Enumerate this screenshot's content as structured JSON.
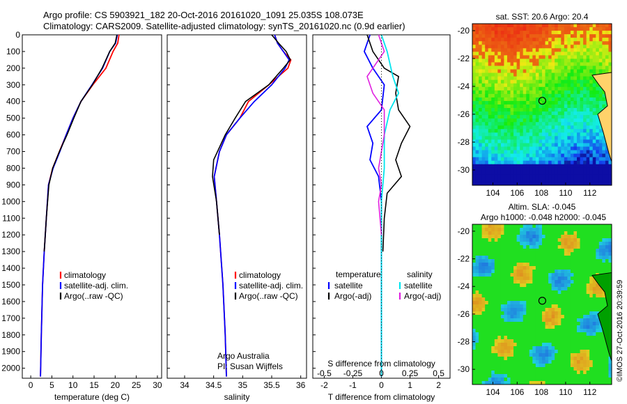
{
  "header": {
    "line1": "Argo profile: CS 5903921_182 20-Oct-2016 20161020_1091 25.035S 108.073E",
    "line2": "Climatology: CARS2009. Satellite-adjusted climatology: synTS_20161020.nc (0.9d earlier)"
  },
  "colors": {
    "climatology": "#ff0000",
    "satellite": "#0000ff",
    "argo": "#000000",
    "sal_satellite": "#00e5ee",
    "sal_argo": "#e020e0"
  },
  "chart_data": [
    {
      "type": "line",
      "name": "temperature",
      "xlabel": "temperature (deg C)",
      "ylabel": "",
      "xlim": [
        -2,
        31
      ],
      "ylim": [
        2060,
        0
      ],
      "xticks": [
        "0",
        "5",
        "10",
        "15",
        "20",
        "25",
        "30"
      ],
      "yticks": [
        "0",
        "100",
        "200",
        "300",
        "400",
        "500",
        "600",
        "700",
        "800",
        "900",
        "1000",
        "1100",
        "1200",
        "1300",
        "1400",
        "1500",
        "1600",
        "1700",
        "1800",
        "1900",
        "2000"
      ],
      "legend": [
        "climatology",
        "satellite-adj. clim.",
        "Argo(..raw -QC)"
      ],
      "series": [
        {
          "name": "climatology",
          "x": [
            20.9,
            20.6,
            19.5,
            17.8,
            14.7,
            11.9,
            10.0,
            8.4,
            6.8,
            5.2,
            4.2,
            3.7,
            3.2,
            2.8,
            2.5,
            2.3
          ],
          "y": [
            0,
            50,
            100,
            200,
            300,
            400,
            500,
            600,
            700,
            800,
            900,
            1100,
            1300,
            1500,
            1800,
            2050
          ]
        },
        {
          "name": "satellite-adj. clim.",
          "x": [
            20.5,
            20.1,
            18.7,
            17.0,
            14.5,
            11.9,
            10.0,
            8.4,
            6.9,
            5.3,
            4.2,
            3.7,
            3.2,
            2.8,
            2.5,
            2.3
          ],
          "y": [
            0,
            50,
            100,
            200,
            300,
            400,
            500,
            600,
            700,
            800,
            900,
            1100,
            1300,
            1500,
            1800,
            2050
          ]
        },
        {
          "name": "Argo(..raw -QC)",
          "x": [
            20.4,
            20.0,
            18.7,
            16.9,
            14.6,
            11.9,
            10.2,
            8.6,
            6.8,
            5.2,
            4.3,
            3.7,
            3.2
          ],
          "y": [
            0,
            50,
            100,
            200,
            300,
            400,
            500,
            600,
            700,
            800,
            900,
            1100,
            1300
          ]
        }
      ]
    },
    {
      "type": "line",
      "name": "salinity",
      "xlabel": "salinity",
      "xlim": [
        33.7,
        36.1
      ],
      "ylim": [
        2060,
        0
      ],
      "xticks": [
        "34",
        "34.5",
        "35",
        "35.5",
        "36"
      ],
      "legend": [
        "climatology",
        "satellite-adj. clim.",
        "Argo(..raw -QC)"
      ],
      "annotation": [
        "Argo Australia",
        "PI: Susan Wijffels"
      ],
      "series": [
        {
          "name": "climatology",
          "x": [
            35.55,
            35.6,
            35.7,
            35.83,
            35.78,
            35.45,
            35.1,
            34.95,
            34.72,
            34.6,
            34.51,
            34.55,
            34.6,
            34.66,
            34.7,
            34.72
          ],
          "y": [
            0,
            50,
            100,
            150,
            200,
            300,
            400,
            500,
            600,
            700,
            850,
            1000,
            1200,
            1500,
            1800,
            2050
          ]
        },
        {
          "name": "satellite-adj. clim.",
          "x": [
            35.55,
            35.6,
            35.7,
            35.8,
            35.73,
            35.5,
            35.2,
            34.95,
            34.72,
            34.6,
            34.51,
            34.55,
            34.6,
            34.66,
            34.7,
            34.72
          ],
          "y": [
            0,
            50,
            100,
            150,
            200,
            300,
            400,
            500,
            600,
            700,
            850,
            1000,
            1200,
            1500,
            1800,
            2050
          ]
        },
        {
          "name": "Argo(..raw -QC)",
          "x": [
            35.5,
            35.62,
            35.75,
            35.82,
            35.7,
            35.45,
            35.05,
            34.87,
            34.7,
            34.5,
            34.48,
            34.55,
            34.6
          ],
          "y": [
            0,
            50,
            100,
            150,
            200,
            300,
            400,
            500,
            600,
            750,
            850,
            1000,
            1200
          ]
        }
      ]
    },
    {
      "type": "line",
      "name": "differences",
      "xlabel": "T difference from climatology",
      "title_inside": "S difference from climatology",
      "xlim": [
        -2.4,
        2.4
      ],
      "ylim": [
        2060,
        0
      ],
      "xticks": [
        "-2",
        "-1",
        "0",
        "1",
        "2"
      ],
      "top_ticks": [
        "-0.5",
        "-0.25",
        "0",
        "0.25",
        "0.5"
      ],
      "legend_t": {
        "title": "temperature",
        "items": [
          "satellite",
          "Argo(-adj)"
        ]
      },
      "legend_s": {
        "title": "salinity",
        "items": [
          "satellite",
          "Argo(-adj)"
        ]
      },
      "series": [
        {
          "name": "T satellite",
          "x": [
            -0.4,
            -0.6,
            -0.3,
            0.1,
            0.0,
            -0.5,
            -0.3,
            -0.4,
            -0.1,
            0.0,
            0.0,
            0.0
          ],
          "y": [
            0,
            100,
            200,
            300,
            450,
            550,
            650,
            750,
            850,
            1000,
            1500,
            2050
          ]
        },
        {
          "name": "T Argo(-adj)",
          "x": [
            -0.5,
            -0.3,
            0.1,
            0.6,
            0.5,
            0.6,
            1.0,
            0.7,
            0.5,
            0.7,
            0.2,
            0.1,
            0.05
          ],
          "y": [
            0,
            100,
            200,
            250,
            350,
            450,
            550,
            650,
            750,
            850,
            950,
            1100,
            1300
          ]
        },
        {
          "name": "S satellite",
          "x": [
            0.0,
            0.2,
            0.4,
            0.6,
            0.3,
            0.1,
            0.1,
            0.0,
            0.0,
            0.0
          ],
          "y": [
            0,
            100,
            250,
            350,
            450,
            600,
            800,
            1000,
            1500,
            2050
          ]
        },
        {
          "name": "S Argo(-adj)",
          "x": [
            -0.1,
            0.1,
            -0.5,
            -0.3,
            0.1,
            0.1,
            -0.1,
            0.0,
            -0.1,
            0.0
          ],
          "y": [
            0,
            100,
            250,
            350,
            450,
            600,
            800,
            900,
            1000,
            1200
          ]
        }
      ]
    },
    {
      "type": "heatmap",
      "name": "sst-map",
      "title": "sat. SST: 20.6 Argo: 20.4",
      "xticks": [
        "104",
        "106",
        "108",
        "110",
        "112"
      ],
      "yticks": [
        "-20",
        "-22",
        "-24",
        "-26",
        "-28",
        "-30"
      ],
      "xlim": [
        102.3,
        113.8
      ],
      "ylim": [
        -31.1,
        -19.5
      ],
      "marker": {
        "lon": 108.073,
        "lat": -25.035
      }
    },
    {
      "type": "heatmap",
      "name": "sla-map",
      "title": "Altim. SLA: -0.045",
      "subtitle": "Argo h1000: -0.048 h2000: -0.045",
      "xticks": [
        "104",
        "106",
        "108",
        "110",
        "112"
      ],
      "yticks": [
        "-20",
        "-22",
        "-24",
        "-26",
        "-28",
        "-30"
      ],
      "xlim": [
        102.3,
        113.8
      ],
      "ylim": [
        -31.1,
        -19.5
      ],
      "marker": {
        "lon": 108.073,
        "lat": -25.035
      }
    }
  ],
  "footer": {
    "stamp": "©IMOS 27-Oct-2016 20:39:59"
  }
}
